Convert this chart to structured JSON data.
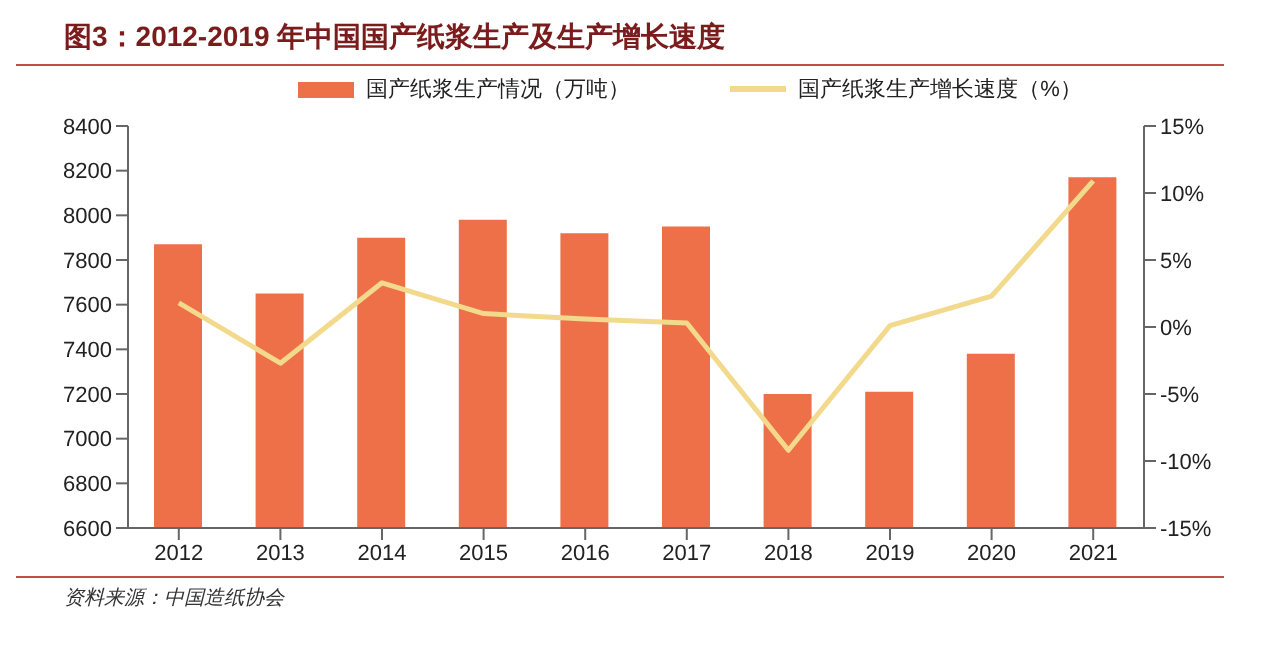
{
  "chart_data": {
    "type": "bar",
    "title": "图3：2012-2019 年中国国产纸浆生产及生产增长速度",
    "categories": [
      "2012",
      "2013",
      "2014",
      "2015",
      "2016",
      "2017",
      "2018",
      "2019",
      "2020",
      "2021"
    ],
    "series": [
      {
        "name": "国产纸浆生产情况（万吨）",
        "color": "#ed7049",
        "values": [
          7870,
          7650,
          7900,
          7980,
          7920,
          7950,
          7200,
          7210,
          7380,
          8170
        ]
      },
      {
        "name": "国产纸浆生产增长速度（%）",
        "type": "line",
        "axis": "y2",
        "color": "#f2d98c",
        "values": [
          1.8,
          -2.7,
          3.3,
          1.0,
          0.6,
          0.3,
          -9.2,
          0.1,
          2.3,
          10.9
        ]
      }
    ],
    "ylim": [
      6600,
      8400
    ],
    "yticks": [
      6600,
      6800,
      7000,
      7200,
      7400,
      7600,
      7800,
      8000,
      8200,
      8400
    ],
    "y2lim": [
      -15,
      15
    ],
    "y2ticks": [
      {
        "value": -15,
        "label": "-15%"
      },
      {
        "value": -10,
        "label": "-10%"
      },
      {
        "value": -5,
        "label": "-5%"
      },
      {
        "value": 0,
        "label": "0%"
      },
      {
        "value": 5,
        "label": "5%"
      },
      {
        "value": 10,
        "label": "10%"
      },
      {
        "value": 15,
        "label": "15%"
      }
    ],
    "legend": "top",
    "grid": false,
    "marker": "none",
    "annotations": [
      "资料来源：中国造纸协会"
    ]
  }
}
